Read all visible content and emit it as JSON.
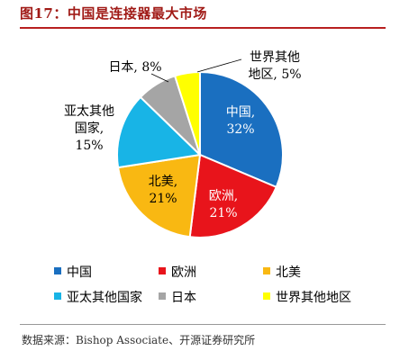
{
  "figure": {
    "title": "图17：中国是连接器最大市场",
    "source": "数据来源：Bishop Associate、开源证券研究所"
  },
  "chart_data": {
    "type": "pie",
    "title": "",
    "unit": "%",
    "slices": [
      {
        "name": "中国",
        "value": 32,
        "color": "#1a6fc0",
        "label_lines": [
          "中国,",
          "32%"
        ]
      },
      {
        "name": "欧洲",
        "value": 21,
        "color": "#e8141b",
        "label_lines": [
          "欧洲,",
          "21%"
        ]
      },
      {
        "name": "北美",
        "value": 21,
        "color": "#f9b812",
        "label_lines": [
          "北美,",
          "21%"
        ]
      },
      {
        "name": "亚太其他国家",
        "value": 15,
        "color": "#18b4e6",
        "label_lines": [
          "亚太其他",
          "国家,",
          "15%"
        ]
      },
      {
        "name": "日本",
        "value": 8,
        "color": "#a5a5a5",
        "label_lines": [
          "日本, 8%"
        ]
      },
      {
        "name": "世界其他地区",
        "value": 5,
        "color": "#ffff00",
        "label_lines": [
          "世界其他",
          "地区, 5%"
        ]
      }
    ],
    "legend": {
      "placement": "bottom",
      "entries": [
        "中国",
        "欧洲",
        "北美",
        "亚太其他国家",
        "日本",
        "世界其他地区"
      ]
    }
  }
}
